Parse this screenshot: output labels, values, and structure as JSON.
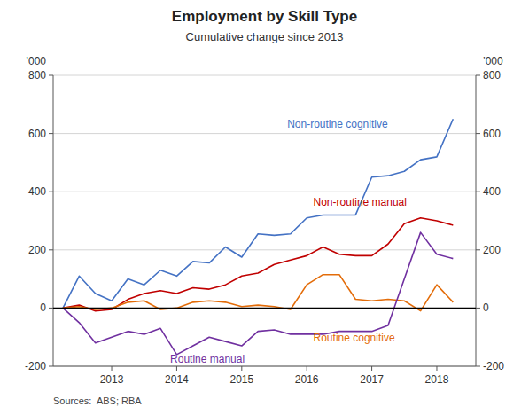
{
  "chart_data": {
    "type": "line",
    "title": "Employment by Skill Type",
    "subtitle": "Cumulative change since 2013",
    "ylabel": "’000",
    "y2label": "’000",
    "source": "Sources:  ABS; RBA",
    "grid": true,
    "xlim": [
      2012.1,
      2018.6
    ],
    "xticks": [
      2013,
      2014,
      2015,
      2016,
      2017,
      2018
    ],
    "ylim": [
      -200,
      800
    ],
    "yticks": [
      -200,
      0,
      200,
      400,
      600,
      800
    ],
    "y2lim": [
      -200,
      800
    ],
    "y2ticks": [
      -200,
      0,
      200,
      400,
      600,
      800
    ],
    "x": [
      2012.25,
      2012.5,
      2012.75,
      2013.0,
      2013.25,
      2013.5,
      2013.75,
      2014.0,
      2014.25,
      2014.5,
      2014.75,
      2015.0,
      2015.25,
      2015.5,
      2015.75,
      2016.0,
      2016.25,
      2016.5,
      2016.75,
      2017.0,
      2017.25,
      2017.5,
      2017.75,
      2018.0,
      2018.25
    ],
    "series": [
      {
        "name": "Non-routine cognitive",
        "color": "#4472C4",
        "values": [
          0,
          110,
          50,
          25,
          100,
          80,
          130,
          110,
          160,
          155,
          210,
          175,
          255,
          250,
          255,
          310,
          320,
          320,
          320,
          450,
          455,
          470,
          510,
          520,
          650
        ]
      },
      {
        "name": "Non-routine manual",
        "color": "#C00000",
        "values": [
          0,
          10,
          -10,
          -5,
          30,
          50,
          60,
          50,
          70,
          65,
          80,
          110,
          120,
          150,
          165,
          180,
          210,
          185,
          180,
          180,
          220,
          290,
          310,
          300,
          285
        ]
      },
      {
        "name": "Routine cognitive",
        "color": "#E36C09",
        "values": [
          0,
          5,
          -5,
          0,
          20,
          25,
          -5,
          0,
          20,
          25,
          20,
          5,
          10,
          5,
          -5,
          80,
          115,
          115,
          30,
          25,
          30,
          25,
          -10,
          80,
          20
        ]
      },
      {
        "name": "Routine manual",
        "color": "#7030A0",
        "values": [
          0,
          -50,
          -120,
          -100,
          -80,
          -90,
          -70,
          -160,
          -130,
          -100,
          -115,
          -130,
          -80,
          -75,
          -90,
          -90,
          -90,
          -80,
          -80,
          -80,
          -60,
          100,
          260,
          185,
          170
        ]
      }
    ],
    "annotations": [
      {
        "text": "Non-routine cognitive",
        "x": 2015.7,
        "y": 630,
        "color": "#4472C4"
      },
      {
        "text": "Non-routine manual",
        "x": 2016.1,
        "y": 360,
        "color": "#C00000"
      },
      {
        "text": "Routine cognitive",
        "x": 2016.1,
        "y": -105,
        "color": "#E36C09"
      },
      {
        "text": "Routine manual",
        "x": 2013.9,
        "y": -178,
        "color": "#7030A0"
      }
    ]
  }
}
